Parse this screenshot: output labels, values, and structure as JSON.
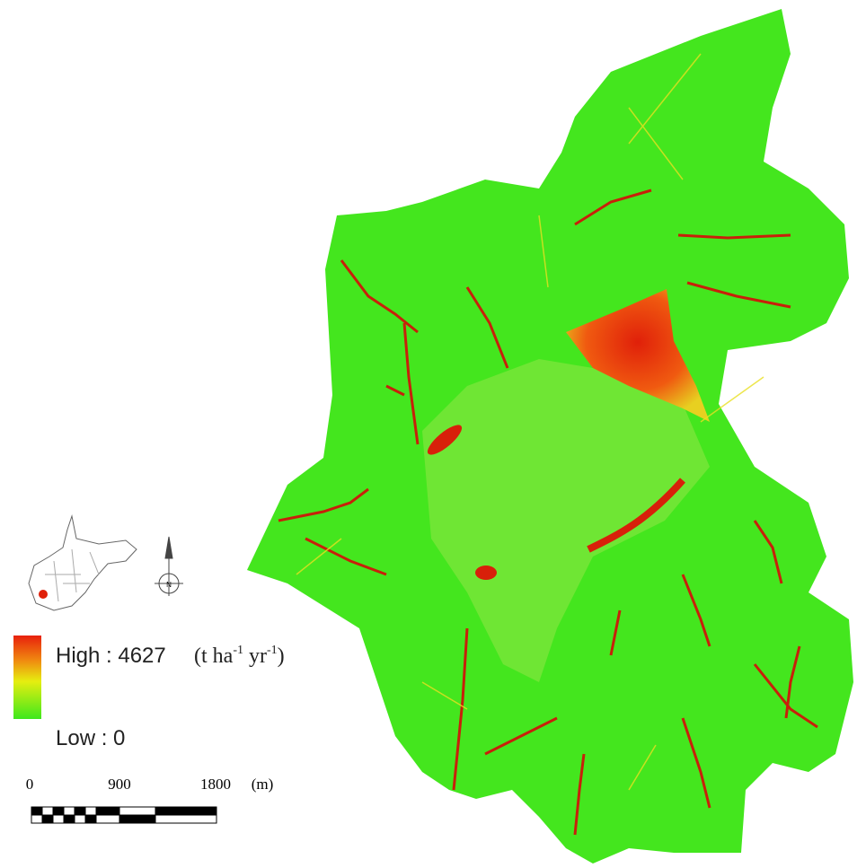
{
  "legend": {
    "high": "High : 4627",
    "unit_open": "(t ha",
    "unit_exp1": "-1",
    "unit_mid": " yr",
    "unit_exp2": "-1",
    "unit_close": ")",
    "low": "Low : 0"
  },
  "north_arrow": "N",
  "scale_bar": {
    "labels": [
      "0",
      "900",
      "1800"
    ],
    "unit": "(m)"
  }
}
